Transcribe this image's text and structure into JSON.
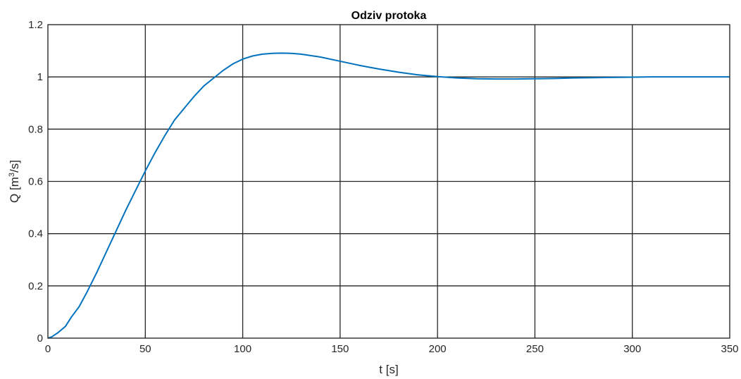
{
  "chart_data": {
    "type": "line",
    "title": "Odziv protoka",
    "xlabel": "t [s]",
    "ylabel": "Q [m3/s]",
    "ylabel_parts": {
      "base": "Q [m",
      "sup": "3",
      "tail": "/s]"
    },
    "xlim": [
      0,
      350
    ],
    "ylim": [
      0,
      1.2
    ],
    "xticks": [
      0,
      50,
      100,
      150,
      200,
      250,
      300,
      350
    ],
    "xtick_labels": [
      "0",
      "50",
      "100",
      "150",
      "200",
      "250",
      "300",
      "350"
    ],
    "yticks": [
      0,
      0.2,
      0.4,
      0.6,
      0.8,
      1.0,
      1.2
    ],
    "ytick_labels": [
      "0",
      "0.2",
      "0.4",
      "0.6",
      "0.8",
      "1",
      "1.2"
    ],
    "grid": true,
    "line_color": "#0072BD",
    "series": [
      {
        "x": [
          0,
          2,
          5,
          9,
          12,
          16,
          20,
          25,
          30,
          35,
          40,
          45,
          50,
          55,
          60,
          65,
          70,
          75,
          80,
          85,
          90,
          95,
          100,
          105,
          110,
          115,
          120,
          125,
          130,
          140,
          150,
          160,
          170,
          180,
          190,
          200,
          210,
          220,
          230,
          240,
          250,
          260,
          270,
          280,
          290,
          300,
          310,
          320,
          330,
          340,
          350
        ],
        "y": [
          0,
          0.005,
          0.02,
          0.045,
          0.08,
          0.12,
          0.175,
          0.25,
          0.33,
          0.41,
          0.49,
          0.565,
          0.64,
          0.71,
          0.775,
          0.835,
          0.88,
          0.925,
          0.965,
          0.995,
          1.025,
          1.05,
          1.068,
          1.08,
          1.087,
          1.09,
          1.091,
          1.09,
          1.087,
          1.076,
          1.06,
          1.044,
          1.03,
          1.018,
          1.008,
          1.001,
          0.996,
          0.993,
          0.992,
          0.992,
          0.993,
          0.994,
          0.996,
          0.997,
          0.998,
          0.999,
          1.0,
          1.0,
          1.0,
          1.0,
          1.0
        ]
      }
    ]
  }
}
